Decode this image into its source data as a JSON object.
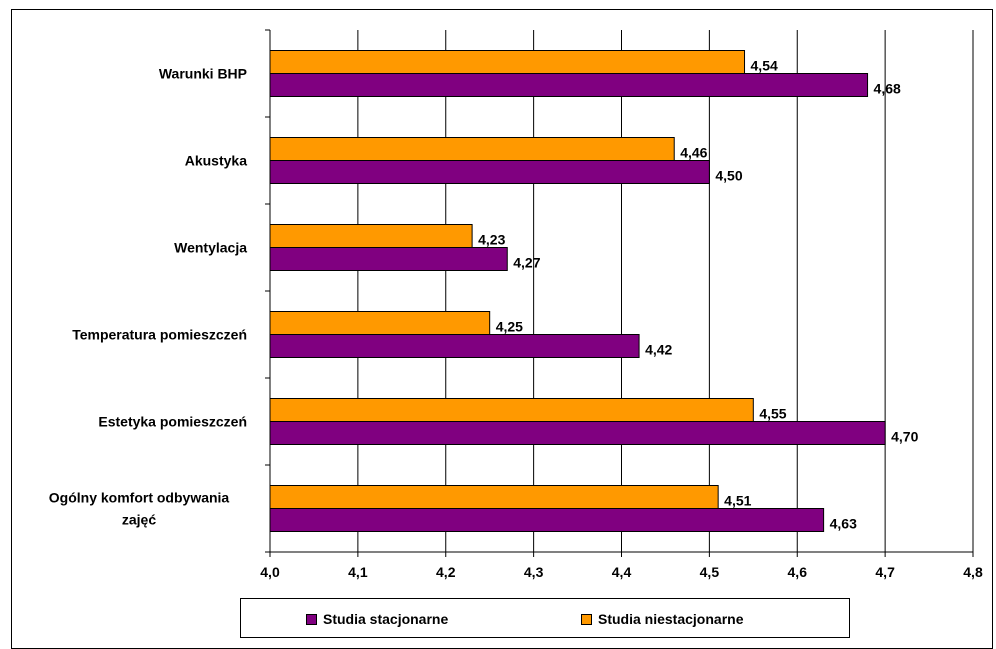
{
  "chart_data": {
    "type": "bar",
    "orientation": "horizontal",
    "categories": [
      "Warunki BHP",
      "Akustyka",
      "Wentylacja",
      "Temperatura pomieszczeń",
      "Estetyka pomieszczeń",
      "Ogólny komfort odbywania zajęć"
    ],
    "category_lines": [
      [
        "Warunki BHP"
      ],
      [
        "Akustyka"
      ],
      [
        "Wentylacja"
      ],
      [
        "Temperatura pomieszczeń"
      ],
      [
        "Estetyka pomieszczeń"
      ],
      [
        "Ogólny komfort odbywania",
        "zajęć"
      ]
    ],
    "series": [
      {
        "name": "Studia niestacjonarne",
        "color": "#FF9900",
        "values": [
          4.54,
          4.46,
          4.23,
          4.25,
          4.55,
          4.51
        ],
        "labels": [
          "4,54",
          "4,46",
          "4,23",
          "4,25",
          "4,55",
          "4,51"
        ]
      },
      {
        "name": "Studia stacjonarne",
        "color": "#800080",
        "values": [
          4.68,
          4.5,
          4.27,
          4.42,
          4.7,
          4.63
        ],
        "labels": [
          "4,68",
          "4,50",
          "4,27",
          "4,42",
          "4,70",
          "4,63"
        ]
      }
    ],
    "xlim": [
      4.0,
      4.8
    ],
    "xticks": [
      4.0,
      4.1,
      4.2,
      4.3,
      4.4,
      4.5,
      4.6,
      4.7,
      4.8
    ],
    "xtick_labels": [
      "4,0",
      "4,1",
      "4,2",
      "4,3",
      "4,4",
      "4,5",
      "4,6",
      "4,7",
      "4,8"
    ],
    "grid": true,
    "legend_position": "bottom",
    "legend_order": [
      "Studia stacjonarne",
      "Studia niestacjonarne"
    ]
  }
}
